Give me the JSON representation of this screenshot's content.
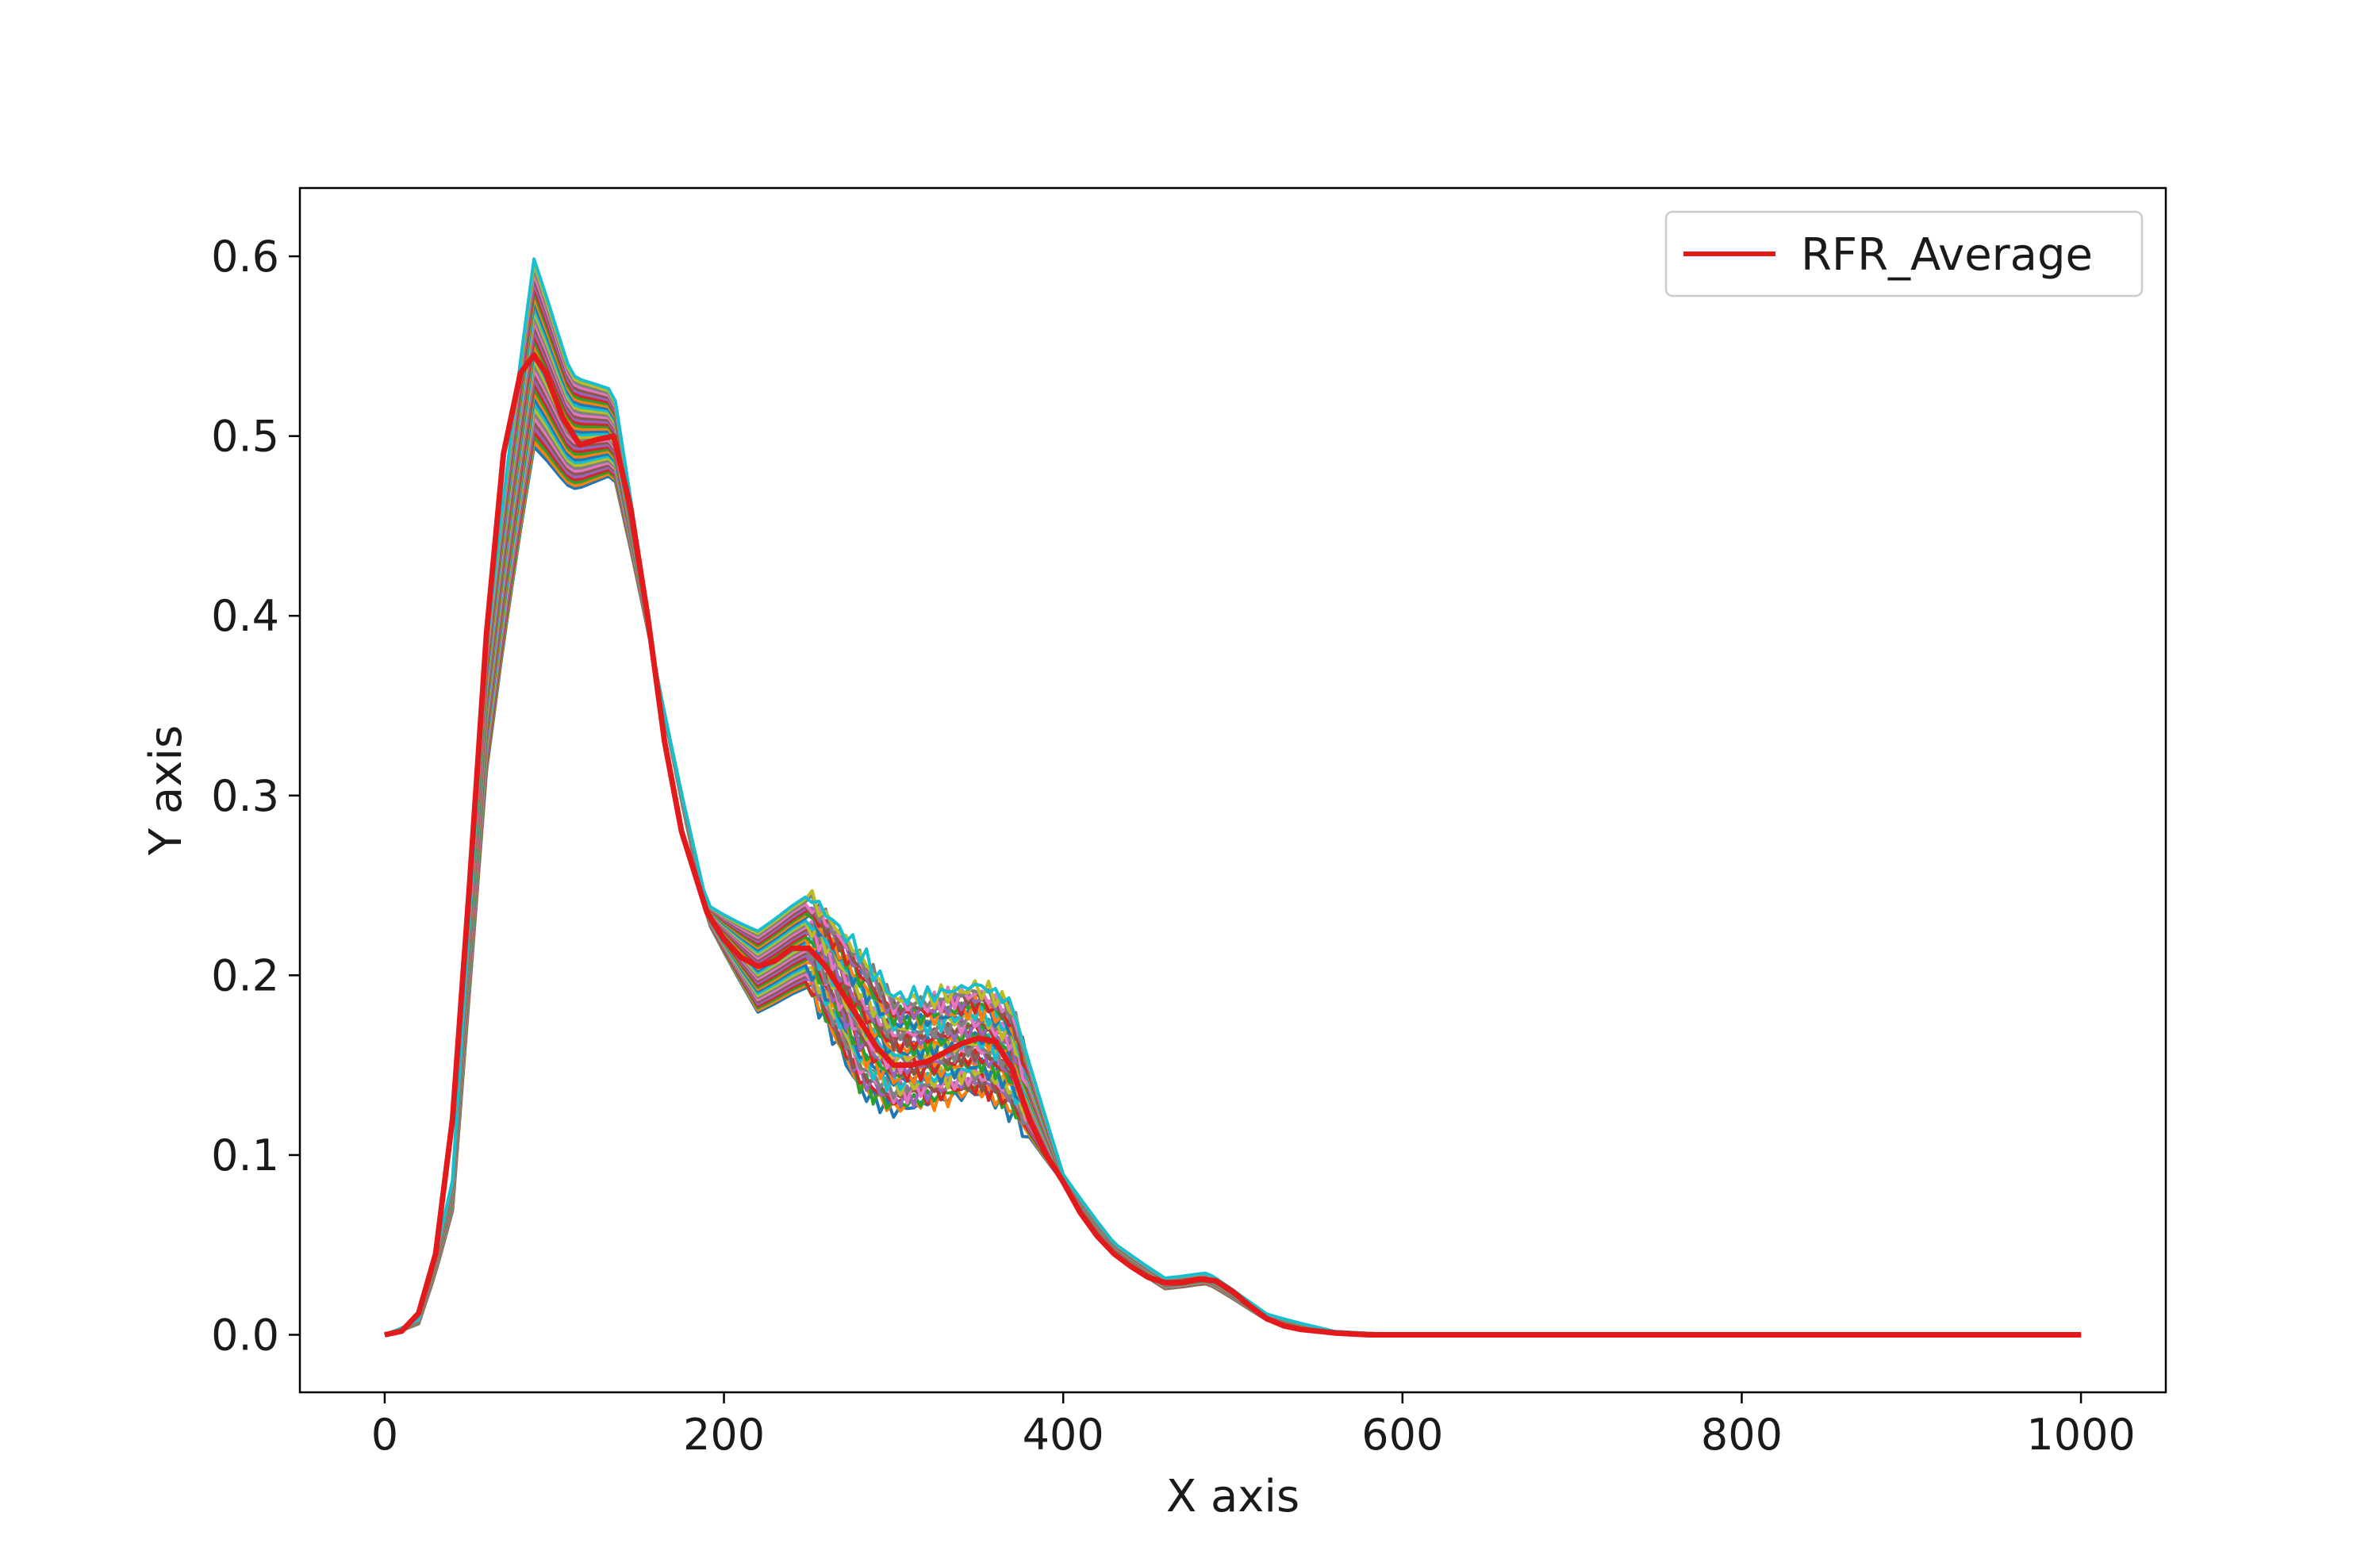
{
  "chart_data": {
    "type": "line",
    "title": "",
    "xlabel": "X axis",
    "ylabel": "Y axis",
    "xlim": [
      -50,
      1050
    ],
    "ylim": [
      -0.032,
      0.638
    ],
    "xticks": [
      0,
      200,
      400,
      600,
      800,
      1000
    ],
    "xtick_labels": [
      "0",
      "200",
      "400",
      "600",
      "800",
      "1000"
    ],
    "yticks": [
      0.0,
      0.1,
      0.2,
      0.3,
      0.4,
      0.5,
      0.6
    ],
    "ytick_labels": [
      "0.0",
      "0.1",
      "0.2",
      "0.3",
      "0.4",
      "0.5",
      "0.6"
    ],
    "grid": false,
    "legend": {
      "position": "top-right",
      "entries": [
        "RFR_Average"
      ]
    },
    "average_color": "#e31a1c",
    "ensemble_colors": [
      "#1f77b4",
      "#ff7f0e",
      "#2ca02c",
      "#d62728",
      "#9467bd",
      "#8c564b",
      "#e377c2",
      "#7f7f7f",
      "#bcbd22",
      "#17becf"
    ],
    "ensemble_count": 40,
    "ensemble_envelope": {
      "x": [
        0,
        20,
        40,
        60,
        88,
        110,
        135,
        160,
        190,
        220,
        250,
        280,
        300,
        320,
        350,
        370,
        400,
        430,
        460,
        485,
        520,
        560,
        600,
        1000
      ],
      "y_min": [
        0,
        0.005,
        0.06,
        0.3,
        0.485,
        0.465,
        0.475,
        0.37,
        0.23,
        0.175,
        0.19,
        0.13,
        0.12,
        0.125,
        0.13,
        0.12,
        0.085,
        0.045,
        0.025,
        0.028,
        0.008,
        0.001,
        0,
        0
      ],
      "y_max": [
        0,
        0.008,
        0.08,
        0.38,
        0.608,
        0.54,
        0.53,
        0.37,
        0.24,
        0.228,
        0.25,
        0.22,
        0.195,
        0.195,
        0.2,
        0.19,
        0.09,
        0.052,
        0.032,
        0.035,
        0.012,
        0.002,
        0,
        0
      ]
    },
    "series": [
      {
        "name": "RFR_Average",
        "x": [
          0,
          10,
          20,
          30,
          40,
          50,
          60,
          70,
          80,
          88,
          95,
          105,
          115,
          125,
          135,
          145,
          155,
          165,
          175,
          190,
          200,
          210,
          220,
          230,
          240,
          250,
          260,
          270,
          280,
          290,
          300,
          310,
          320,
          330,
          340,
          350,
          360,
          370,
          380,
          390,
          400,
          410,
          420,
          430,
          440,
          450,
          460,
          470,
          480,
          490,
          500,
          510,
          520,
          530,
          540,
          560,
          580,
          600,
          700,
          800,
          900,
          1000
        ],
        "y": [
          0.0,
          0.002,
          0.012,
          0.045,
          0.12,
          0.25,
          0.39,
          0.49,
          0.535,
          0.545,
          0.535,
          0.51,
          0.495,
          0.498,
          0.5,
          0.46,
          0.4,
          0.33,
          0.28,
          0.235,
          0.22,
          0.21,
          0.205,
          0.208,
          0.215,
          0.215,
          0.205,
          0.19,
          0.175,
          0.16,
          0.15,
          0.15,
          0.152,
          0.157,
          0.162,
          0.165,
          0.163,
          0.148,
          0.12,
          0.1,
          0.085,
          0.068,
          0.055,
          0.045,
          0.038,
          0.032,
          0.029,
          0.029,
          0.031,
          0.03,
          0.024,
          0.016,
          0.009,
          0.005,
          0.003,
          0.001,
          0.0,
          0.0,
          0.0,
          0.0,
          0.0,
          0.0
        ]
      }
    ]
  }
}
